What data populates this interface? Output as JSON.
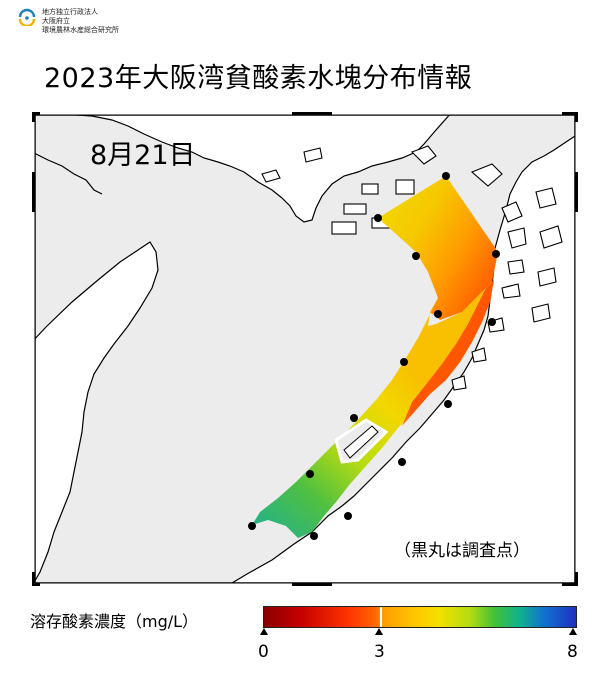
{
  "header": {
    "org_lines": [
      "地方独立行政法人",
      "大阪府立",
      "環境農林水産総合研究所"
    ],
    "title": "2023年大阪湾貧酸素水塊分布情報"
  },
  "map": {
    "date_label": "8月21日",
    "note": "（黒丸は調査点）",
    "colors": {
      "land": "#ffffff",
      "sea": "#ececec",
      "border": "#000000"
    },
    "survey_point_count": 15
  },
  "legend": {
    "title": "溶存酸素濃度（mg/L）",
    "tick_labels": [
      "0",
      "3",
      "8"
    ],
    "range_mg_per_L": [
      0,
      8
    ],
    "threshold_mg_per_L": 3,
    "colors": [
      "#8a0000",
      "#ff3300",
      "#ff9a00",
      "#f5e000",
      "#40c038",
      "#1070d0",
      "#2030c0"
    ]
  }
}
